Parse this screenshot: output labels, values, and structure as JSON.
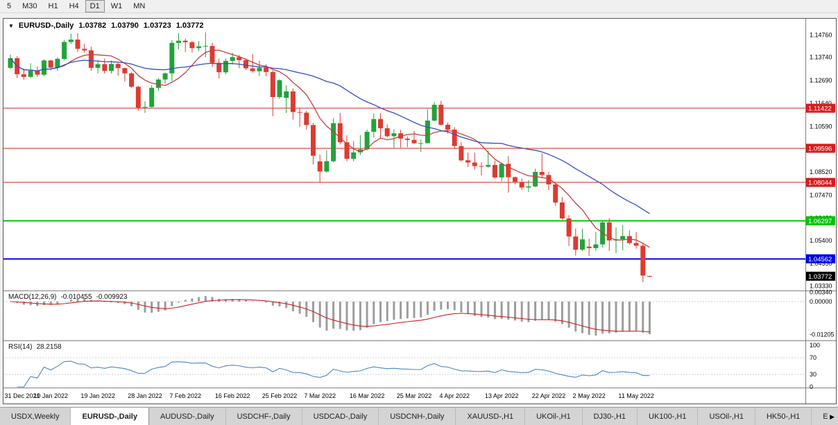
{
  "toolbar": {
    "timeframes": [
      "5",
      "M30",
      "H1",
      "H4",
      "D1",
      "W1",
      "MN"
    ],
    "active_timeframe": "D1"
  },
  "chart": {
    "header": {
      "dropdown_icon": "▼",
      "symbol": "EURUSD-,Daily",
      "open": "1.03782",
      "high": "1.03790",
      "low": "1.03723",
      "close": "1.03772"
    },
    "price_axis_ticks": [
      "1.14760",
      "1.13740",
      "1.12690",
      "1.11640",
      "1.10590",
      "1.09540",
      "1.08520",
      "1.07470",
      "1.06420",
      "1.05400",
      "1.04350",
      "1.03330"
    ],
    "levels": [
      {
        "label": "1.11422",
        "price": 1.11422,
        "color": "#d91c1c",
        "width": 1
      },
      {
        "label": "1.09596",
        "price": 1.09596,
        "color": "#d91c1c",
        "width": 1
      },
      {
        "label": "1.08044",
        "price": 1.08044,
        "color": "#d91c1c",
        "width": 1
      },
      {
        "label": "1.06297",
        "price": 1.06297,
        "color": "#00c400",
        "width": 2
      },
      {
        "label": "1.04562",
        "price": 1.04562,
        "color": "#0000e6",
        "width": 2
      }
    ],
    "current_price": {
      "label": "1.03772",
      "price": 1.03772,
      "box_color": "#000000"
    },
    "date_axis": [
      {
        "label": "31 Dec 2021",
        "index": 0
      },
      {
        "label": "10 Jan 2022",
        "index": 6
      },
      {
        "label": "19 Jan 2022",
        "index": 13
      },
      {
        "label": "28 Jan 2022",
        "index": 20
      },
      {
        "label": "7 Feb 2022",
        "index": 26
      },
      {
        "label": "16 Feb 2022",
        "index": 33
      },
      {
        "label": "25 Feb 2022",
        "index": 40
      },
      {
        "label": "7 Mar 2022",
        "index": 46
      },
      {
        "label": "16 Mar 2022",
        "index": 53
      },
      {
        "label": "25 Mar 2022",
        "index": 60
      },
      {
        "label": "4 Apr 2022",
        "index": 66
      },
      {
        "label": "13 Apr 2022",
        "index": 73
      },
      {
        "label": "22 Apr 2022",
        "index": 80
      },
      {
        "label": "2 May 2022",
        "index": 86
      },
      {
        "label": "11 May 2022",
        "index": 93
      }
    ]
  },
  "indicators": {
    "macd": {
      "name": "MACD(12,26,9)",
      "value": "-0.010455",
      "signal": "-0.009923",
      "axis_ticks": [
        "0.00340",
        "0.00000",
        "-0.01205"
      ],
      "fast_period": 12,
      "slow_period": 26,
      "signal_period": 9,
      "histogram_color": "#9d9d9d",
      "signal_color": "#cc2020"
    },
    "rsi": {
      "name": "RSI(14)",
      "value": "28.2158",
      "axis_ticks": [
        "100",
        "70",
        "30",
        "0"
      ],
      "period": 14,
      "levels": [
        70,
        30
      ],
      "line_color": "#4a86c8"
    }
  },
  "tabs": {
    "items": [
      {
        "label": "USDX,Weekly",
        "active": false
      },
      {
        "label": "EURUSD-,Daily",
        "active": true
      },
      {
        "label": "AUDUSD-,Daily",
        "active": false
      },
      {
        "label": "USDCHF-,Daily",
        "active": false
      },
      {
        "label": "USDCAD-,Daily",
        "active": false
      },
      {
        "label": "USDCNH-,Daily",
        "active": false
      },
      {
        "label": "XAUUSD-,H1",
        "active": false
      },
      {
        "label": "UKOil-,H1",
        "active": false
      },
      {
        "label": "DJ30-,H1",
        "active": false
      },
      {
        "label": "UK100-,H1",
        "active": false
      },
      {
        "label": "USOil-,H1",
        "active": false
      },
      {
        "label": "HK50-,H1",
        "active": false
      },
      {
        "label": "EU",
        "active": false
      }
    ],
    "scroll_right_icon": "▶"
  },
  "chart_data": {
    "type": "candlestick",
    "symbol": "EURUSD-",
    "timeframe": "Daily",
    "title": "EURUSD-,Daily",
    "last_bar_ohlc": {
      "open": 1.03782,
      "high": 1.0379,
      "low": 1.03723,
      "close": 1.03772
    },
    "price_axis_range": [
      1.0312,
      1.155
    ],
    "up_color": "#22a23c",
    "down_color": "#dd3b30",
    "moving_averages": [
      {
        "type": "sma",
        "period": 8,
        "color": "#c44040"
      },
      {
        "type": "sma",
        "period": 26,
        "color": "#3050c0"
      }
    ],
    "columns": [
      "date",
      "open",
      "high",
      "low",
      "close"
    ],
    "candles": [
      [
        "31 Dec 2021",
        1.1326,
        1.1386,
        1.132,
        1.137
      ],
      [
        "3 Jan 2022",
        1.137,
        1.1379,
        1.1279,
        1.1297
      ],
      [
        "4 Jan 2022",
        1.1297,
        1.1323,
        1.1272,
        1.1285
      ],
      [
        "5 Jan 2022",
        1.1285,
        1.1347,
        1.128,
        1.1313
      ],
      [
        "6 Jan 2022",
        1.1313,
        1.1332,
        1.1285,
        1.1295
      ],
      [
        "7 Jan 2022",
        1.1295,
        1.1365,
        1.1289,
        1.136
      ],
      [
        "10 Jan 2022",
        1.136,
        1.1362,
        1.1315,
        1.1327
      ],
      [
        "11 Jan 2022",
        1.1327,
        1.1374,
        1.1313,
        1.1367
      ],
      [
        "12 Jan 2022",
        1.1367,
        1.1453,
        1.136,
        1.1444
      ],
      [
        "13 Jan 2022",
        1.1444,
        1.1482,
        1.1435,
        1.1455
      ],
      [
        "14 Jan 2022",
        1.1455,
        1.1483,
        1.1398,
        1.1413
      ],
      [
        "17 Jan 2022",
        1.1413,
        1.1436,
        1.1395,
        1.1406
      ],
      [
        "18 Jan 2022",
        1.1406,
        1.1422,
        1.1313,
        1.1326
      ],
      [
        "19 Jan 2022",
        1.1326,
        1.136,
        1.1301,
        1.1343
      ],
      [
        "20 Jan 2022",
        1.1343,
        1.1369,
        1.13,
        1.1312
      ],
      [
        "21 Jan 2022",
        1.1312,
        1.136,
        1.13,
        1.1344
      ],
      [
        "24 Jan 2022",
        1.1344,
        1.1349,
        1.1291,
        1.1325
      ],
      [
        "25 Jan 2022",
        1.1325,
        1.1328,
        1.1263,
        1.1301
      ],
      [
        "26 Jan 2022",
        1.1301,
        1.1307,
        1.1235,
        1.124
      ],
      [
        "27 Jan 2022",
        1.124,
        1.1245,
        1.1131,
        1.1145
      ],
      [
        "28 Jan 2022",
        1.1145,
        1.1174,
        1.1121,
        1.1148
      ],
      [
        "31 Jan 2022",
        1.1148,
        1.1248,
        1.1141,
        1.1235
      ],
      [
        "1 Feb 2022",
        1.1235,
        1.1279,
        1.1221,
        1.1273
      ],
      [
        "2 Feb 2022",
        1.1273,
        1.1305,
        1.1254,
        1.1301
      ],
      [
        "3 Feb 2022",
        1.1301,
        1.1452,
        1.1266,
        1.144
      ],
      [
        "4 Feb 2022",
        1.144,
        1.1484,
        1.1411,
        1.145
      ],
      [
        "7 Feb 2022",
        1.145,
        1.1459,
        1.1398,
        1.1443
      ],
      [
        "8 Feb 2022",
        1.1443,
        1.1449,
        1.1396,
        1.1416
      ],
      [
        "9 Feb 2022",
        1.1416,
        1.1448,
        1.1403,
        1.1424
      ],
      [
        "10 Feb 2022",
        1.1424,
        1.1488,
        1.1375,
        1.1426
      ],
      [
        "11 Feb 2022",
        1.1426,
        1.1441,
        1.133,
        1.1349
      ],
      [
        "14 Feb 2022",
        1.1349,
        1.1368,
        1.1278,
        1.1306
      ],
      [
        "15 Feb 2022",
        1.1306,
        1.1368,
        1.1297,
        1.1358
      ],
      [
        "16 Feb 2022",
        1.1358,
        1.1395,
        1.1341,
        1.1375
      ],
      [
        "17 Feb 2022",
        1.1375,
        1.1385,
        1.1325,
        1.1361
      ],
      [
        "18 Feb 2022",
        1.1361,
        1.1369,
        1.1316,
        1.1324
      ],
      [
        "21 Feb 2022",
        1.1324,
        1.139,
        1.1304,
        1.1311
      ],
      [
        "22 Feb 2022",
        1.1311,
        1.1359,
        1.1288,
        1.1327
      ],
      [
        "23 Feb 2022",
        1.1327,
        1.1342,
        1.1287,
        1.1307
      ],
      [
        "24 Feb 2022",
        1.1307,
        1.1315,
        1.1106,
        1.1193
      ],
      [
        "25 Feb 2022",
        1.1193,
        1.1274,
        1.1184,
        1.127
      ],
      [
        "28 Feb 2022",
        1.119,
        1.1247,
        1.1121,
        1.1219
      ],
      [
        "1 Mar 2022",
        1.1219,
        1.1232,
        1.109,
        1.1125
      ],
      [
        "2 Mar 2022",
        1.1125,
        1.1142,
        1.1058,
        1.1122
      ],
      [
        "3 Mar 2022",
        1.1122,
        1.113,
        1.1045,
        1.1066
      ],
      [
        "4 Mar 2022",
        1.1066,
        1.1075,
        1.0886,
        1.0926
      ],
      [
        "7 Mar 2022",
        1.09,
        1.0931,
        1.0806,
        1.0854
      ],
      [
        "8 Mar 2022",
        1.0854,
        1.095,
        1.0848,
        1.0901
      ],
      [
        "9 Mar 2022",
        1.0901,
        1.1096,
        1.0896,
        1.1074
      ],
      [
        "10 Mar 2022",
        1.1074,
        1.1121,
        1.0977,
        1.0987
      ],
      [
        "11 Mar 2022",
        1.0987,
        1.102,
        1.0901,
        1.0912
      ],
      [
        "14 Mar 2022",
        1.0912,
        1.0993,
        1.0901,
        1.0941
      ],
      [
        "15 Mar 2022",
        1.0941,
        1.102,
        1.093,
        1.0955
      ],
      [
        "16 Mar 2022",
        1.0955,
        1.1046,
        1.095,
        1.1035
      ],
      [
        "17 Mar 2022",
        1.1035,
        1.1119,
        1.1009,
        1.1093
      ],
      [
        "18 Mar 2022",
        1.1093,
        1.112,
        1.1003,
        1.1051
      ],
      [
        "21 Mar 2022",
        1.1051,
        1.1069,
        1.1009,
        1.1015
      ],
      [
        "22 Mar 2022",
        1.1015,
        1.1047,
        1.0962,
        1.1028
      ],
      [
        "23 Mar 2022",
        1.1028,
        1.1044,
        1.0963,
        1.1004
      ],
      [
        "24 Mar 2022",
        1.1004,
        1.1014,
        1.0965,
        1.0998
      ],
      [
        "25 Mar 2022",
        1.0998,
        1.1039,
        1.0979,
        1.0983
      ],
      [
        "28 Mar 2022",
        1.0983,
        1.0999,
        1.0944,
        1.0983
      ],
      [
        "29 Mar 2022",
        1.0983,
        1.1137,
        1.0982,
        1.1086
      ],
      [
        "30 Mar 2022",
        1.1086,
        1.1171,
        1.1083,
        1.1158
      ],
      [
        "31 Mar 2022",
        1.1158,
        1.1176,
        1.1061,
        1.1067
      ],
      [
        "1 Apr 2022",
        1.1067,
        1.1077,
        1.1027,
        1.1045
      ],
      [
        "4 Apr 2022",
        1.1045,
        1.1056,
        1.0961,
        1.097
      ],
      [
        "5 Apr 2022",
        1.097,
        1.0988,
        1.0899,
        1.0905
      ],
      [
        "6 Apr 2022",
        1.0905,
        1.094,
        1.0874,
        1.0895
      ],
      [
        "7 Apr 2022",
        1.0895,
        1.0939,
        1.0863,
        1.0879
      ],
      [
        "8 Apr 2022",
        1.0879,
        1.0896,
        1.0836,
        1.0876
      ],
      [
        "11 Apr 2022",
        1.0876,
        1.095,
        1.0872,
        1.0884
      ],
      [
        "12 Apr 2022",
        1.0884,
        1.0904,
        1.0821,
        1.0827
      ],
      [
        "13 Apr 2022",
        1.0827,
        1.0895,
        1.0809,
        1.0889
      ],
      [
        "14 Apr 2022",
        1.0889,
        1.0924,
        1.0758,
        1.0828
      ],
      [
        "15 Apr 2022",
        1.0828,
        1.0832,
        1.0796,
        1.0807
      ],
      [
        "18 Apr 2022",
        1.0807,
        1.0822,
        1.077,
        1.0781
      ],
      [
        "19 Apr 2022",
        1.0781,
        1.0815,
        1.0761,
        1.0786
      ],
      [
        "20 Apr 2022",
        1.0786,
        1.0867,
        1.0783,
        1.0852
      ],
      [
        "21 Apr 2022",
        1.0852,
        1.0937,
        1.0824,
        1.0838
      ],
      [
        "22 Apr 2022",
        1.0838,
        1.0852,
        1.077,
        1.0795
      ],
      [
        "25 Apr 2022",
        1.0795,
        1.0797,
        1.0697,
        1.0713
      ],
      [
        "26 Apr 2022",
        1.0713,
        1.0738,
        1.0635,
        1.064
      ],
      [
        "27 Apr 2022",
        1.064,
        1.0655,
        1.0515,
        1.0558
      ],
      [
        "28 Apr 2022",
        1.0558,
        1.0594,
        1.0471,
        1.0498
      ],
      [
        "29 Apr 2022",
        1.0498,
        1.0593,
        1.0492,
        1.0545
      ],
      [
        "2 May 2022",
        1.0512,
        1.0549,
        1.047,
        1.0505
      ],
      [
        "3 May 2022",
        1.0505,
        1.0578,
        1.0493,
        1.0522
      ],
      [
        "4 May 2022",
        1.0522,
        1.0632,
        1.0508,
        1.0622
      ],
      [
        "5 May 2022",
        1.0622,
        1.0642,
        1.0492,
        1.054
      ],
      [
        "6 May 2022",
        1.054,
        1.0599,
        1.0483,
        1.0545
      ],
      [
        "9 May 2022",
        1.0545,
        1.061,
        1.0495,
        1.056
      ],
      [
        "10 May 2022",
        1.056,
        1.0587,
        1.0522,
        1.0528
      ],
      [
        "11 May 2022",
        1.0528,
        1.0578,
        1.0503,
        1.0516
      ],
      [
        "12 May 2022",
        1.0516,
        1.0528,
        1.035,
        1.038
      ],
      [
        "13 May 2022",
        1.03782,
        1.0379,
        1.03723,
        1.03772
      ]
    ]
  }
}
